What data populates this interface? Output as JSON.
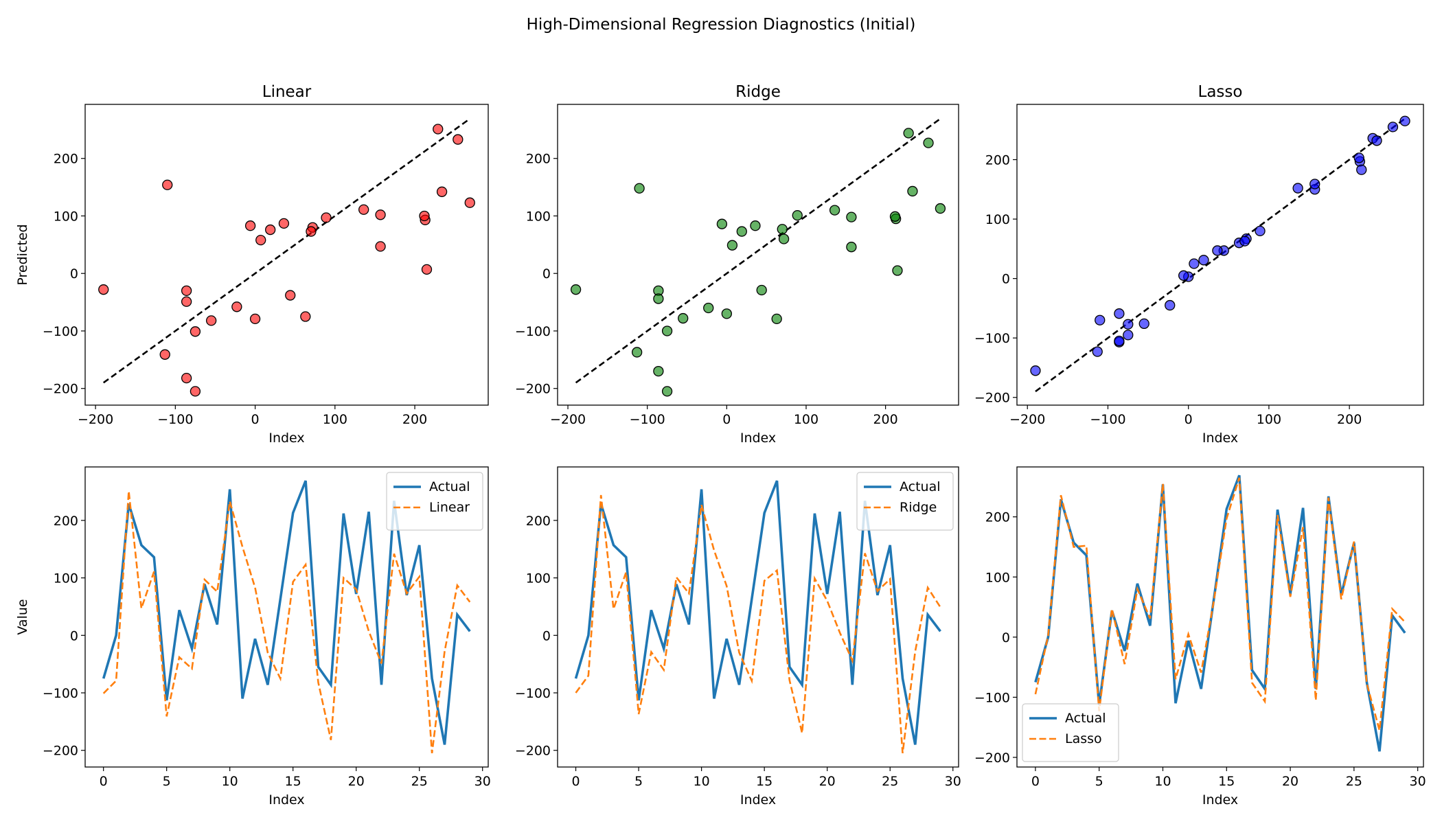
{
  "suptitle": "High-Dimensional Regression Diagnostics (Initial)",
  "colors": {
    "actual": "#1f77b4",
    "prediction": "#ff7f0e",
    "linear_points": "#ff0000",
    "ridge_points": "#008000",
    "lasso_points": "#0000ff",
    "ideal_line": "#000000"
  },
  "chart_data": [
    {
      "type": "scatter",
      "title": "Linear",
      "xlabel": "Index",
      "ylabel": "Predicted",
      "xlim": [
        -213,
        292
      ],
      "ylim": [
        -229,
        294
      ],
      "xticks": [
        -200,
        -100,
        0,
        100,
        200
      ],
      "xtick_labels": [
        "−200",
        "−100",
        "0",
        "100",
        "200"
      ],
      "yticks": [
        -200,
        -100,
        0,
        100,
        200
      ],
      "ytick_labels": [
        "−200",
        "−100",
        "0",
        "100",
        "200"
      ],
      "point_color": "#ff0000",
      "ideal_line": [
        -190,
        269
      ],
      "grid": false,
      "x": [
        -75,
        0,
        229,
        157,
        136,
        -113,
        44,
        -23,
        89,
        19,
        254,
        -110,
        -6,
        -86,
        63,
        213,
        269,
        -55,
        -86,
        212,
        72,
        215,
        -86,
        234,
        70,
        157,
        -75,
        -190,
        36,
        7
      ],
      "y": [
        -101,
        -79,
        251,
        47,
        111,
        -141,
        -38,
        -58,
        97,
        76,
        233,
        154,
        83,
        -30,
        -75,
        93,
        123,
        -82,
        -182,
        100,
        80,
        7,
        -49,
        142,
        73,
        102,
        -205,
        -28,
        87,
        58
      ]
    },
    {
      "type": "scatter",
      "title": "Ridge",
      "xlabel": "Index",
      "ylabel": "",
      "xlim": [
        -213,
        292
      ],
      "ylim": [
        -229,
        294
      ],
      "xticks": [
        -200,
        -100,
        0,
        100,
        200
      ],
      "xtick_labels": [
        "−200",
        "−100",
        "0",
        "100",
        "200"
      ],
      "yticks": [
        -200,
        -100,
        0,
        100,
        200
      ],
      "ytick_labels": [
        "−200",
        "−100",
        "0",
        "100",
        "200"
      ],
      "point_color": "#008000",
      "ideal_line": [
        -190,
        269
      ],
      "grid": false,
      "x": [
        -75,
        0,
        229,
        157,
        136,
        -113,
        44,
        -23,
        89,
        19,
        254,
        -110,
        -6,
        -86,
        63,
        213,
        269,
        -55,
        -86,
        212,
        72,
        215,
        -86,
        234,
        70,
        157,
        -75,
        -190,
        36,
        7
      ],
      "y": [
        -100,
        -70,
        244,
        46,
        110,
        -137,
        -29,
        -60,
        101,
        73,
        227,
        148,
        86,
        -30,
        -79,
        95,
        113,
        -78,
        -170,
        99,
        60,
        5,
        -44,
        143,
        77,
        98,
        -205,
        -28,
        83,
        49
      ]
    },
    {
      "type": "scatter",
      "title": "Lasso",
      "xlabel": "Index",
      "ylabel": "",
      "xlim": [
        -213,
        292
      ],
      "ylim": [
        -213,
        293
      ],
      "xticks": [
        -200,
        -100,
        0,
        100,
        200
      ],
      "xtick_labels": [
        "−200",
        "−100",
        "0",
        "100",
        "200"
      ],
      "yticks": [
        -200,
        -100,
        0,
        100,
        200
      ],
      "ytick_labels": [
        "−200",
        "−100",
        "0",
        "100",
        "200"
      ],
      "point_color": "#0000ff",
      "ideal_line": [
        -190,
        269
      ],
      "grid": false,
      "x": [
        -75,
        0,
        229,
        157,
        136,
        -113,
        44,
        -23,
        89,
        19,
        254,
        -110,
        -6,
        -86,
        63,
        213,
        269,
        -55,
        -86,
        212,
        72,
        215,
        -86,
        234,
        70,
        157,
        -75,
        -190,
        36,
        7
      ],
      "y": [
        -95,
        3,
        236,
        150,
        152,
        -123,
        47,
        -45,
        80,
        31,
        255,
        -70,
        5,
        -59,
        60,
        197,
        265,
        -76,
        -107,
        203,
        67,
        183,
        -105,
        232,
        63,
        159,
        -77,
        -155,
        47,
        25
      ]
    },
    {
      "type": "line",
      "title": "",
      "xlabel": "Index",
      "ylabel": "Value",
      "xlim": [
        -1.45,
        30.45
      ],
      "ylim": [
        -229,
        293
      ],
      "xticks": [
        0,
        5,
        10,
        15,
        20,
        25,
        30
      ],
      "xtick_labels": [
        "0",
        "5",
        "10",
        "15",
        "20",
        "25",
        "30"
      ],
      "yticks": [
        -200,
        -100,
        0,
        100,
        200
      ],
      "ytick_labels": [
        "−200",
        "−100",
        "0",
        "100",
        "200"
      ],
      "legend": "upper right",
      "grid": false,
      "x": [
        0,
        1,
        2,
        3,
        4,
        5,
        6,
        7,
        8,
        9,
        10,
        11,
        12,
        13,
        14,
        15,
        16,
        17,
        18,
        19,
        20,
        21,
        22,
        23,
        24,
        25,
        26,
        27,
        28,
        29
      ],
      "series": [
        {
          "name": "Actual",
          "style": "solid",
          "color": "#1f77b4",
          "values": [
            -75,
            0,
            229,
            157,
            136,
            -113,
            44,
            -23,
            89,
            19,
            254,
            -110,
            -6,
            -86,
            63,
            213,
            269,
            -55,
            -86,
            212,
            72,
            215,
            -86,
            234,
            70,
            157,
            -75,
            -190,
            36,
            7
          ]
        },
        {
          "name": "Linear",
          "style": "dashed",
          "color": "#ff7f0e",
          "values": [
            -101,
            -79,
            251,
            47,
            111,
            -141,
            -38,
            -58,
            97,
            76,
            233,
            154,
            83,
            -30,
            -75,
            93,
            123,
            -82,
            -182,
            100,
            80,
            7,
            -49,
            142,
            73,
            102,
            -205,
            -28,
            87,
            58
          ]
        }
      ]
    },
    {
      "type": "line",
      "title": "",
      "xlabel": "Index",
      "ylabel": "",
      "xlim": [
        -1.45,
        30.45
      ],
      "ylim": [
        -229,
        293
      ],
      "xticks": [
        0,
        5,
        10,
        15,
        20,
        25,
        30
      ],
      "xtick_labels": [
        "0",
        "5",
        "10",
        "15",
        "20",
        "25",
        "30"
      ],
      "yticks": [
        -200,
        -100,
        0,
        100,
        200
      ],
      "ytick_labels": [
        "−200",
        "−100",
        "0",
        "100",
        "200"
      ],
      "legend": "upper right",
      "grid": false,
      "x": [
        0,
        1,
        2,
        3,
        4,
        5,
        6,
        7,
        8,
        9,
        10,
        11,
        12,
        13,
        14,
        15,
        16,
        17,
        18,
        19,
        20,
        21,
        22,
        23,
        24,
        25,
        26,
        27,
        28,
        29
      ],
      "series": [
        {
          "name": "Actual",
          "style": "solid",
          "color": "#1f77b4",
          "values": [
            -75,
            0,
            229,
            157,
            136,
            -113,
            44,
            -23,
            89,
            19,
            254,
            -110,
            -6,
            -86,
            63,
            213,
            269,
            -55,
            -86,
            212,
            72,
            215,
            -86,
            234,
            70,
            157,
            -75,
            -190,
            36,
            7
          ]
        },
        {
          "name": "Ridge",
          "style": "dashed",
          "color": "#ff7f0e",
          "values": [
            -100,
            -70,
            244,
            46,
            110,
            -137,
            -29,
            -60,
            101,
            73,
            227,
            148,
            86,
            -30,
            -79,
            95,
            113,
            -78,
            -170,
            99,
            60,
            5,
            -44,
            143,
            77,
            98,
            -205,
            -28,
            83,
            49
          ]
        }
      ]
    },
    {
      "type": "line",
      "title": "",
      "xlabel": "Index",
      "ylabel": "",
      "xlim": [
        -1.45,
        30.45
      ],
      "ylim": [
        -216,
        283
      ],
      "xticks": [
        0,
        5,
        10,
        15,
        20,
        25,
        30
      ],
      "xtick_labels": [
        "0",
        "5",
        "10",
        "15",
        "20",
        "25",
        "30"
      ],
      "yticks": [
        -200,
        -100,
        0,
        100,
        200
      ],
      "ytick_labels": [
        "−200",
        "−100",
        "0",
        "100",
        "200"
      ],
      "legend": "lower left",
      "grid": false,
      "x": [
        0,
        1,
        2,
        3,
        4,
        5,
        6,
        7,
        8,
        9,
        10,
        11,
        12,
        13,
        14,
        15,
        16,
        17,
        18,
        19,
        20,
        21,
        22,
        23,
        24,
        25,
        26,
        27,
        28,
        29
      ],
      "series": [
        {
          "name": "Actual",
          "style": "solid",
          "color": "#1f77b4",
          "values": [
            -75,
            0,
            229,
            157,
            136,
            -113,
            44,
            -23,
            89,
            19,
            254,
            -110,
            -6,
            -86,
            63,
            213,
            269,
            -55,
            -86,
            212,
            72,
            215,
            -86,
            234,
            70,
            157,
            -75,
            -190,
            36,
            7
          ]
        },
        {
          "name": "Lasso",
          "style": "dashed",
          "color": "#ff7f0e",
          "values": [
            -95,
            3,
            236,
            150,
            152,
            -123,
            47,
            -45,
            80,
            31,
            255,
            -70,
            5,
            -59,
            60,
            197,
            265,
            -76,
            -107,
            203,
            67,
            183,
            -105,
            232,
            63,
            159,
            -77,
            -155,
            47,
            25
          ]
        }
      ]
    }
  ]
}
